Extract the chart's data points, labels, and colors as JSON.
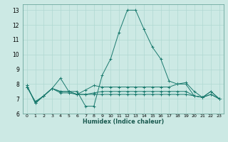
{
  "xlabel": "Humidex (Indice chaleur)",
  "background_color": "#cce9e4",
  "grid_color": "#b0d8d2",
  "line_color": "#1a7a6e",
  "xlim": [
    -0.5,
    23.5
  ],
  "ylim": [
    6.0,
    13.4
  ],
  "yticks": [
    6,
    7,
    8,
    9,
    10,
    11,
    12,
    13
  ],
  "xtick_labels": [
    "0",
    "1",
    "2",
    "3",
    "4",
    "5",
    "6",
    "7",
    "8",
    "9",
    "10",
    "11",
    "12",
    "13",
    "14",
    "15",
    "16",
    "17",
    "18",
    "19",
    "20",
    "21",
    "22",
    "23"
  ],
  "series": [
    [
      7.9,
      6.7,
      7.2,
      7.7,
      8.4,
      7.5,
      7.5,
      6.5,
      6.5,
      8.6,
      9.7,
      11.5,
      13.0,
      13.0,
      11.7,
      10.5,
      9.7,
      8.2,
      8.0,
      8.1,
      7.5,
      7.1,
      7.5,
      7.0
    ],
    [
      7.9,
      6.7,
      7.2,
      7.7,
      7.5,
      7.5,
      7.3,
      7.6,
      7.9,
      7.8,
      7.8,
      7.8,
      7.8,
      7.8,
      7.8,
      7.8,
      7.8,
      7.8,
      8.0,
      8.0,
      7.2,
      7.1,
      7.5,
      7.0
    ],
    [
      7.8,
      6.8,
      7.2,
      7.7,
      7.5,
      7.5,
      7.3,
      7.3,
      7.4,
      7.5,
      7.5,
      7.5,
      7.5,
      7.5,
      7.5,
      7.5,
      7.5,
      7.5,
      7.5,
      7.5,
      7.2,
      7.1,
      7.3,
      7.0
    ],
    [
      7.8,
      6.8,
      7.2,
      7.7,
      7.4,
      7.4,
      7.3,
      7.3,
      7.3,
      7.3,
      7.3,
      7.3,
      7.3,
      7.3,
      7.3,
      7.3,
      7.3,
      7.3,
      7.3,
      7.3,
      7.2,
      7.1,
      7.3,
      7.0
    ]
  ]
}
